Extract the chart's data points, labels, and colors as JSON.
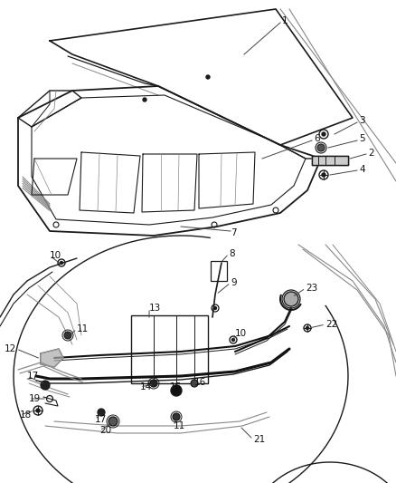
{
  "background_color": "#ffffff",
  "line_color": "#1a1a1a",
  "gray_color": "#888888",
  "light_gray": "#bbbbbb",
  "fig_width": 4.38,
  "fig_height": 5.33,
  "dpi": 100
}
